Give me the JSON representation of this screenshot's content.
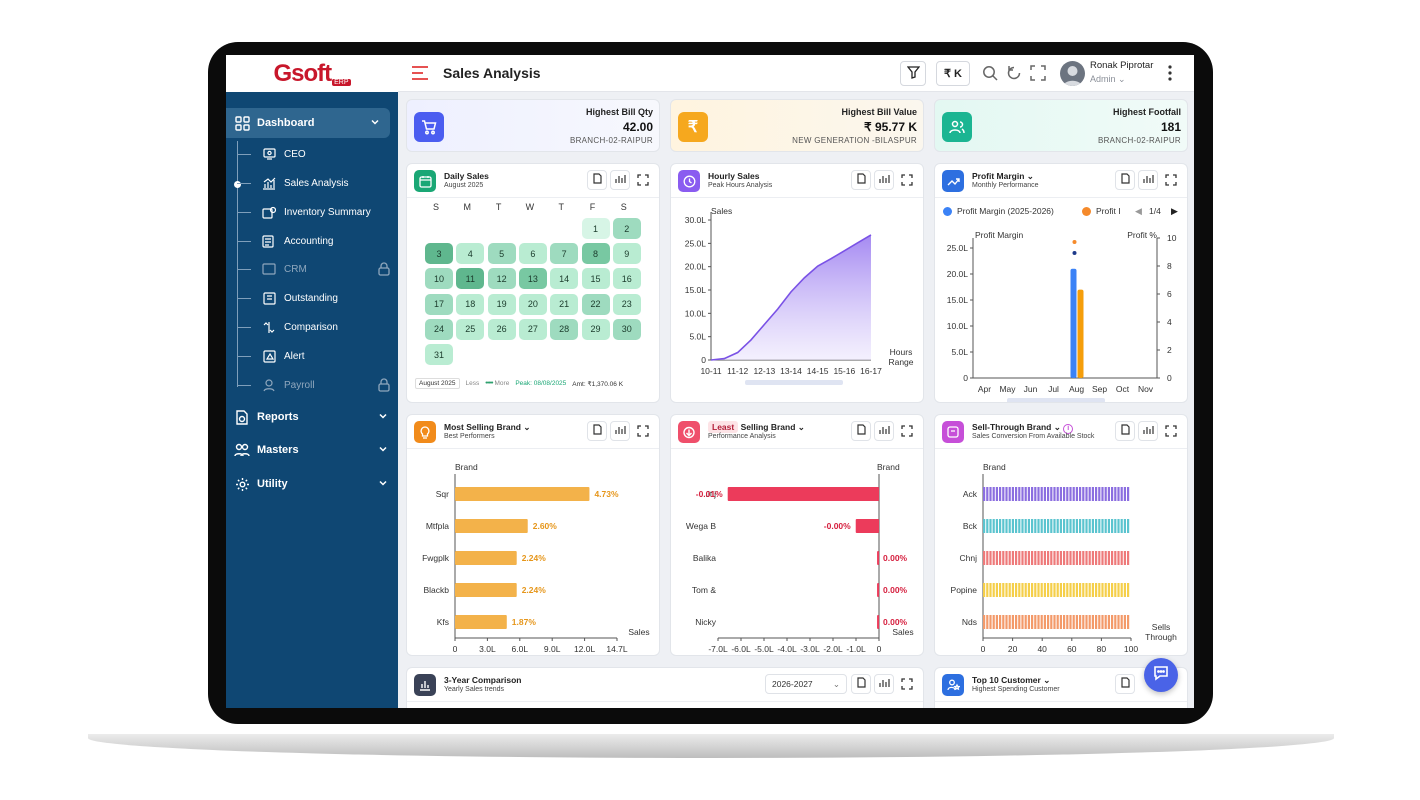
{
  "app": {
    "logo": "Gsoft",
    "logo_badge": "ERP",
    "page_title": "Sales Analysis",
    "currency_btn": "₹ K"
  },
  "user": {
    "name": "Ronak Piprotar",
    "role": "Admin"
  },
  "sidebar": {
    "dashboard": "Dashboard",
    "items": [
      {
        "label": "CEO",
        "locked": false
      },
      {
        "label": "Sales Analysis",
        "locked": false
      },
      {
        "label": "Inventory Summary",
        "locked": false
      },
      {
        "label": "Accounting",
        "locked": false
      },
      {
        "label": "CRM",
        "locked": true
      },
      {
        "label": "Outstanding",
        "locked": false
      },
      {
        "label": "Comparison",
        "locked": false
      },
      {
        "label": "Alert",
        "locked": false
      },
      {
        "label": "Payroll",
        "locked": true
      }
    ],
    "reports": "Reports",
    "masters": "Masters",
    "utility": "Utility"
  },
  "kpis": [
    {
      "title": "Highest Bill Qty",
      "value": "42.00",
      "sub": "BRANCH-02-RAIPUR",
      "color": "#4b5df0"
    },
    {
      "title": "Highest Bill Value",
      "value": "₹ 95.77 K",
      "sub": "NEW GENERATION -BILASPUR",
      "color": "#f6a81e"
    },
    {
      "title": "Highest Footfall",
      "value": "181",
      "sub": "BRANCH-02-RAIPUR",
      "color": "#1bb592"
    }
  ],
  "daily": {
    "title": "Daily Sales",
    "subtitle": "August 2025",
    "dow": [
      "S",
      "M",
      "T",
      "W",
      "T",
      "F",
      "S"
    ],
    "footer_month": "August 2025",
    "less": "Less",
    "more": "More",
    "peak": "Peak: 08/08/2025",
    "amt": "Amt: ₹1,370.06 K",
    "levels": [
      0,
      2,
      4,
      1,
      2,
      1,
      2,
      3,
      1,
      2,
      4,
      2,
      3,
      1,
      1,
      1,
      2,
      1,
      1,
      1,
      1,
      2,
      1,
      2,
      1,
      1,
      1,
      2,
      1,
      2,
      1
    ],
    "first_weekday": 5
  },
  "hourly": {
    "title": "Hourly Sales",
    "subtitle": "Peak Hours Analysis"
  },
  "profit": {
    "title": "Profit Margin",
    "subtitle": "Monthly Performance",
    "legend1": "Profit Margin (2025-2026)",
    "legend2": "Profit I",
    "pager": "1/4"
  },
  "most": {
    "title": "Most Selling",
    "title2": "Brand",
    "subtitle": "Best Performers"
  },
  "least": {
    "title": "Least",
    "title2": "Selling",
    "title3": "Brand",
    "subtitle": "Performance Analysis"
  },
  "sell": {
    "title": "Sell-Through",
    "title2": "Brand",
    "subtitle": "Sales Conversion From Available Stock"
  },
  "comparison": {
    "title": "3-Year Comparison",
    "subtitle": "Yearly Sales trends",
    "year": "2026-2027"
  },
  "top10": {
    "title": "Top 10",
    "title2": "Customer",
    "subtitle": "Highest Spending Customer"
  },
  "chart_data": [
    {
      "type": "area",
      "title": "Hourly Sales",
      "ylabel": "Sales",
      "xlabel": "Hours Range",
      "categories": [
        "10-11",
        "11-12",
        "12-13",
        "13-14",
        "14-15",
        "15-16",
        "16-17"
      ],
      "x": [
        0,
        0.5,
        1,
        1.5,
        2,
        2.5,
        3,
        3.5,
        4,
        4.5,
        5,
        5.5,
        6
      ],
      "values": [
        0.0,
        0.3,
        1.6,
        4.3,
        7.6,
        10.9,
        14.6,
        17.6,
        20.1,
        21.7,
        23.4,
        25.1,
        26.8
      ],
      "yticks": [
        "0",
        "5.0L",
        "10.0L",
        "15.0L",
        "20.0L",
        "25.0L",
        "30.0L"
      ],
      "ylim": [
        0,
        30
      ]
    },
    {
      "type": "bar",
      "title": "Profit Margin",
      "ylabel": "Profit Margin",
      "y2label": "Profit %",
      "categories": [
        "Apr",
        "May",
        "Jun",
        "Jul",
        "Aug",
        "Sep",
        "Oct",
        "Nov"
      ],
      "series": [
        {
          "name": "Profit Margin (2025-2026)",
          "values": [
            0,
            0,
            0,
            0,
            21,
            0,
            0,
            0
          ],
          "color": "#3b82f6"
        },
        {
          "name": "Profit I",
          "values": [
            0,
            0,
            0,
            0,
            17,
            0,
            0,
            0
          ],
          "color": "#f59e0b"
        }
      ],
      "yticks": [
        "0",
        "5.0L",
        "10.0L",
        "15.0L",
        "20.0L",
        "25.0L"
      ],
      "y2ticks": [
        "0",
        "2",
        "4",
        "6",
        "8",
        "10"
      ],
      "ylim": [
        0,
        25
      ]
    },
    {
      "type": "bar",
      "orientation": "horizontal",
      "title": "Most Selling Brand",
      "ylabel": "Brand",
      "xlabel": "Sales",
      "categories": [
        "Sqr",
        "Mtfpla",
        "Fwgplk",
        "Blackb",
        "Kfs"
      ],
      "values": [
        12.2,
        6.6,
        5.6,
        5.6,
        4.7
      ],
      "labels": [
        "4.73%",
        "2.60%",
        "2.24%",
        "2.24%",
        "1.87%"
      ],
      "xticks": [
        "0",
        "3.0L",
        "6.0L",
        "9.0L",
        "12.0L",
        "14.7L"
      ],
      "xlim": [
        0,
        14.7
      ]
    },
    {
      "type": "bar",
      "orientation": "horizontal",
      "title": "Least Selling Brand",
      "ylabel": "Brand",
      "xlabel": "Sales",
      "categories": [
        "Jtlj",
        "Wega B",
        "Balika",
        "Tom &",
        "Nicky"
      ],
      "values": [
        -7.8,
        -1.2,
        -0.1,
        -0.1,
        -0.1
      ],
      "labels": [
        "-0.01%",
        "-0.00%",
        "0.00%",
        "0.00%",
        "0.00%"
      ],
      "xticks": [
        "-7.0L",
        "-6.0L",
        "-5.0L",
        "-4.0L",
        "-3.0L",
        "-2.0L",
        "-1.0L",
        "0"
      ],
      "xlim": [
        -8.3,
        0
      ]
    },
    {
      "type": "bar",
      "orientation": "horizontal",
      "title": "Sell-Through Brand",
      "ylabel": "Brand",
      "xlabel": "Sells Through",
      "categories": [
        "Ack",
        "Bck",
        "Chnj",
        "Popine",
        "Nds"
      ],
      "values": [
        100,
        100,
        100,
        100,
        100
      ],
      "colors": [
        "#8b6ee0",
        "#5bc4cf",
        "#ee7a7a",
        "#f5cf4a",
        "#f39a6a"
      ],
      "xticks": [
        "0",
        "20",
        "40",
        "60",
        "80",
        "100"
      ],
      "xlim": [
        0,
        100
      ]
    }
  ]
}
